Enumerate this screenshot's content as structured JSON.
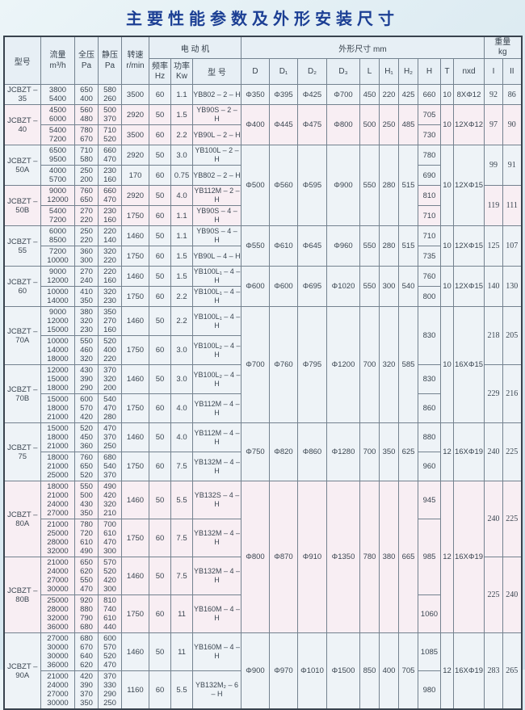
{
  "title": "主要性能参数及外形安装尺寸",
  "header": {
    "model": "型号",
    "flow": [
      "流量",
      "m³/h"
    ],
    "total_pressure": [
      "全压",
      "Pa"
    ],
    "static_pressure": [
      "静压",
      "Pa"
    ],
    "speed": [
      "转速",
      "r/min"
    ],
    "motor_group": "电 动 机",
    "freq": [
      "频率",
      "Hz"
    ],
    "power": [
      "功率",
      "Kw"
    ],
    "motor_model": "型 号",
    "dims_group": "外形尺寸 mm",
    "dims": [
      "D",
      "D₁",
      "D₂",
      "D₃",
      "L",
      "H₁",
      "H₂",
      "H",
      "T",
      "nxd"
    ],
    "weight_group": [
      "重量",
      "kg"
    ],
    "weight_cols": [
      "I",
      "II"
    ]
  },
  "colors": {
    "title_blue": "#1c3f94",
    "page_bg": "#d8e8f0",
    "tint_pink": "#f8eef3",
    "tint_blue": "#eef3f7",
    "grid": "#74828f"
  },
  "models": [
    {
      "label": [
        "JCBZT –",
        "35"
      ],
      "tint": "blue",
      "weights": [
        "92",
        "86"
      ],
      "rows": [
        {
          "flow": [
            "3800",
            "5400"
          ],
          "tp": [
            "650",
            "400"
          ],
          "sp": [
            "580",
            "260"
          ],
          "speed": "3500",
          "hz": "60",
          "kw": "1.1",
          "motor": "YB802 – 2 – H"
        }
      ]
    },
    {
      "label": [
        "JCBZT –",
        "40"
      ],
      "tint": "pink",
      "weights": [
        "97",
        "90"
      ],
      "rows": [
        {
          "flow": [
            "4500",
            "6000"
          ],
          "tp": [
            "560",
            "480"
          ],
          "sp": [
            "500",
            "370"
          ],
          "speed": "2920",
          "hz": "50",
          "kw": "1.5",
          "motor": "YB90S – 2 – H"
        },
        {
          "flow": [
            "5400",
            "7200"
          ],
          "tp": [
            "780",
            "670"
          ],
          "sp": [
            "710",
            "520"
          ],
          "speed": "3500",
          "hz": "60",
          "kw": "2.2",
          "motor": "YB90L – 2 – H"
        }
      ]
    },
    {
      "label": [
        "JCBZT –",
        "50A"
      ],
      "tint": "blue",
      "weights": [
        "99",
        "91"
      ],
      "rows": [
        {
          "flow": [
            "6500",
            "9500"
          ],
          "tp": [
            "710",
            "580"
          ],
          "sp": [
            "660",
            "470"
          ],
          "speed": "2920",
          "hz": "50",
          "kw": "3.0",
          "motor": "YB100L – 2 – H"
        },
        {
          "flow": [
            "4000",
            "5700"
          ],
          "tp": [
            "250",
            "200"
          ],
          "sp": [
            "230",
            "160"
          ],
          "speed": "170",
          "hz": "60",
          "kw": "0.75",
          "motor": "YB802 – 2 – H"
        }
      ]
    },
    {
      "label": [
        "JCBZT –",
        "50B"
      ],
      "tint": "pink",
      "weights": [
        "119",
        "111"
      ],
      "rows": [
        {
          "flow": [
            "9000",
            "12000"
          ],
          "tp": [
            "760",
            "650"
          ],
          "sp": [
            "660",
            "470"
          ],
          "speed": "2920",
          "hz": "50",
          "kw": "4.0",
          "motor": "YB112M – 2 – H"
        },
        {
          "flow": [
            "5400",
            "7200"
          ],
          "tp": [
            "270",
            "220"
          ],
          "sp": [
            "230",
            "160"
          ],
          "speed": "1750",
          "hz": "60",
          "kw": "1.1",
          "motor": "YB90S – 4 – H"
        }
      ]
    },
    {
      "label": [
        "JCBZT –",
        "55"
      ],
      "tint": "blue",
      "weights": [
        "125",
        "107"
      ],
      "rows": [
        {
          "flow": [
            "6000",
            "8500"
          ],
          "tp": [
            "250",
            "220"
          ],
          "sp": [
            "220",
            "140"
          ],
          "speed": "1460",
          "hz": "50",
          "kw": "1.1",
          "motor": "YB90S – 4 – H"
        },
        {
          "flow": [
            "7200",
            "10000"
          ],
          "tp": [
            "360",
            "300"
          ],
          "sp": [
            "320",
            "220"
          ],
          "speed": "1750",
          "hz": "60",
          "kw": "1.5",
          "motor": "YB90L – 4 – H"
        }
      ]
    },
    {
      "label": [
        "JCBZT –",
        "60"
      ],
      "tint": "blue",
      "weights": [
        "140",
        "130"
      ],
      "rows": [
        {
          "flow": [
            "9000",
            "12000"
          ],
          "tp": [
            "270",
            "240"
          ],
          "sp": [
            "220",
            "160"
          ],
          "speed": "1460",
          "hz": "50",
          "kw": "1.5",
          "motor": "YB100L₁ – 4 – H"
        },
        {
          "flow": [
            "10000",
            "14000"
          ],
          "tp": [
            "410",
            "350"
          ],
          "sp": [
            "320",
            "230"
          ],
          "speed": "1750",
          "hz": "60",
          "kw": "2.2",
          "motor": "YB100L₁ – 4 – H"
        }
      ]
    },
    {
      "label": [
        "JCBZT –",
        "70A"
      ],
      "tint": "blue",
      "weights": [
        "218",
        "205"
      ],
      "rows": [
        {
          "flow": [
            "9000",
            "12000",
            "15000"
          ],
          "tp": [
            "380",
            "320",
            "230"
          ],
          "sp": [
            "350",
            "270",
            "160"
          ],
          "speed": "1460",
          "hz": "50",
          "kw": "2.2",
          "motor": "YB100L₁ – 4 – H"
        },
        {
          "flow": [
            "10000",
            "14000",
            "18000"
          ],
          "tp": [
            "550",
            "460",
            "320"
          ],
          "sp": [
            "520",
            "400",
            "220"
          ],
          "speed": "1750",
          "hz": "60",
          "kw": "3.0",
          "motor": "YB100L₂ – 4 – H"
        }
      ]
    },
    {
      "label": [
        "JCBZT –",
        "70B"
      ],
      "tint": "blue",
      "weights": [
        "229",
        "216"
      ],
      "rows": [
        {
          "flow": [
            "12000",
            "15000",
            "18000"
          ],
          "tp": [
            "430",
            "390",
            "290"
          ],
          "sp": [
            "370",
            "320",
            "200"
          ],
          "speed": "1460",
          "hz": "50",
          "kw": "3.0",
          "motor": "YB100L₂ – 4 – H"
        },
        {
          "flow": [
            "15000",
            "18000",
            "21000"
          ],
          "tp": [
            "600",
            "570",
            "420"
          ],
          "sp": [
            "540",
            "470",
            "280"
          ],
          "speed": "1750",
          "hz": "60",
          "kw": "4.0",
          "motor": "YB112M – 4 – H"
        }
      ]
    },
    {
      "label": [
        "JCBZT –",
        "75"
      ],
      "tint": "blue",
      "weights": [
        "240",
        "225"
      ],
      "rows": [
        {
          "flow": [
            "15000",
            "18000",
            "21000"
          ],
          "tp": [
            "520",
            "450",
            "360"
          ],
          "sp": [
            "470",
            "370",
            "250"
          ],
          "speed": "1460",
          "hz": "50",
          "kw": "4.0",
          "motor": "YB112M – 4 – H"
        },
        {
          "flow": [
            "18000",
            "21000",
            "25000"
          ],
          "tp": [
            "760",
            "650",
            "520"
          ],
          "sp": [
            "680",
            "540",
            "370"
          ],
          "speed": "1750",
          "hz": "60",
          "kw": "7.5",
          "motor": "YB132M – 4 – H"
        }
      ]
    },
    {
      "label": [
        "JCBZT –",
        "80A"
      ],
      "tint": "pink",
      "weights": [
        "240",
        "225"
      ],
      "rows": [
        {
          "flow": [
            "18000",
            "21000",
            "24000",
            "27000"
          ],
          "tp": [
            "550",
            "500",
            "430",
            "350"
          ],
          "sp": [
            "490",
            "420",
            "320",
            "210"
          ],
          "speed": "1460",
          "hz": "50",
          "kw": "5.5",
          "motor": "YB132S – 4 – H"
        },
        {
          "flow": [
            "21000",
            "25000",
            "28000",
            "32000"
          ],
          "tp": [
            "780",
            "720",
            "610",
            "490"
          ],
          "sp": [
            "700",
            "610",
            "470",
            "300"
          ],
          "speed": "1750",
          "hz": "60",
          "kw": "7.5",
          "motor": "YB132M – 4 – H"
        }
      ]
    },
    {
      "label": [
        "JCBZT –",
        "80B"
      ],
      "tint": "pink",
      "weights": [
        "225",
        "240"
      ],
      "rows": [
        {
          "flow": [
            "21000",
            "24000",
            "27000",
            "30000"
          ],
          "tp": [
            "650",
            "620",
            "550",
            "470"
          ],
          "sp": [
            "570",
            "520",
            "420",
            "300"
          ],
          "speed": "1460",
          "hz": "50",
          "kw": "7.5",
          "motor": "YB132M – 4 – H"
        },
        {
          "flow": [
            "25000",
            "28000",
            "32000",
            "36000"
          ],
          "tp": [
            "920",
            "880",
            "790",
            "680"
          ],
          "sp": [
            "810",
            "740",
            "610",
            "440"
          ],
          "speed": "1750",
          "hz": "60",
          "kw": "11",
          "motor": "YB160M – 4 – H"
        }
      ]
    },
    {
      "label": [
        "JCBZT –",
        "90A"
      ],
      "tint": "blue",
      "weights": [
        "283",
        "265"
      ],
      "rows": [
        {
          "flow": [
            "27000",
            "30000",
            "30000",
            "36000"
          ],
          "tp": [
            "680",
            "670",
            "640",
            "620"
          ],
          "sp": [
            "600",
            "570",
            "520",
            "470"
          ],
          "speed": "1460",
          "hz": "50",
          "kw": "11",
          "motor": "YB160M – 4 – H"
        },
        {
          "flow": [
            "21000",
            "24000",
            "27000",
            "30000"
          ],
          "tp": [
            "420",
            "390",
            "370",
            "350"
          ],
          "sp": [
            "370",
            "330",
            "290",
            "250"
          ],
          "speed": "1160",
          "hz": "60",
          "kw": "5.5",
          "motor": "YB132M₂ – 6 – H"
        }
      ]
    }
  ],
  "dim_groups": [
    {
      "row": 0,
      "span": 1,
      "cells": [
        "Φ350",
        "Φ395",
        "Φ425",
        "Φ700",
        "450",
        "220",
        "425"
      ],
      "t": "10",
      "nxd": "8XΦ12"
    },
    {
      "row": 1,
      "span": 2,
      "cells": [
        "Φ400",
        "Φ445",
        "Φ475",
        "Φ800",
        "500",
        "250",
        "485"
      ],
      "t": "10",
      "nxd": "12XΦ12"
    },
    {
      "row": 3,
      "span": 4,
      "cells": [
        "Φ500",
        "Φ560",
        "Φ595",
        "Φ900",
        "550",
        "280",
        "515"
      ],
      "t": "10",
      "nxd": "12XΦ15"
    },
    {
      "row": 7,
      "span": 2,
      "cells": [
        "Φ550",
        "Φ610",
        "Φ645",
        "Φ960",
        "550",
        "280",
        "515"
      ],
      "t": "10",
      "nxd": "12XΦ15"
    },
    {
      "row": 9,
      "span": 2,
      "cells": [
        "Φ600",
        "Φ600",
        "Φ695",
        "Φ1020",
        "550",
        "300",
        "540"
      ],
      "t": "10",
      "nxd": "12XΦ15"
    },
    {
      "row": 11,
      "span": 4,
      "cells": [
        "Φ700",
        "Φ760",
        "Φ795",
        "Φ1200",
        "700",
        "320",
        "585"
      ],
      "t": "10",
      "nxd": "16XΦ15"
    },
    {
      "row": 15,
      "span": 2,
      "cells": [
        "Φ750",
        "Φ820",
        "Φ860",
        "Φ1280",
        "700",
        "350",
        "625"
      ],
      "t": "12",
      "nxd": "16XΦ19"
    },
    {
      "row": 17,
      "span": 4,
      "cells": [
        "Φ800",
        "Φ870",
        "Φ910",
        "Φ1350",
        "780",
        "380",
        "665"
      ],
      "t": "12",
      "nxd": "16XΦ19"
    },
    {
      "row": 21,
      "span": 2,
      "cells": [
        "Φ900",
        "Φ970",
        "Φ1010",
        "Φ1500",
        "850",
        "400",
        "705"
      ],
      "t": "12",
      "nxd": "16XΦ19"
    }
  ],
  "h_cells": [
    {
      "row": 0,
      "span": 1,
      "v": "660"
    },
    {
      "row": 1,
      "span": 1,
      "v": "705"
    },
    {
      "row": 2,
      "span": 1,
      "v": "730"
    },
    {
      "row": 3,
      "span": 1,
      "v": "780"
    },
    {
      "row": 4,
      "span": 1,
      "v": "690"
    },
    {
      "row": 5,
      "span": 1,
      "v": "810"
    },
    {
      "row": 6,
      "span": 1,
      "v": "710"
    },
    {
      "row": 7,
      "span": 1,
      "v": "710"
    },
    {
      "row": 8,
      "span": 1,
      "v": "735"
    },
    {
      "row": 9,
      "span": 1,
      "v": "760"
    },
    {
      "row": 10,
      "span": 1,
      "v": "800"
    },
    {
      "row": 11,
      "span": 2,
      "v": "830"
    },
    {
      "row": 13,
      "span": 1,
      "v": "830"
    },
    {
      "row": 14,
      "span": 1,
      "v": "860"
    },
    {
      "row": 15,
      "span": 1,
      "v": "880"
    },
    {
      "row": 16,
      "span": 1,
      "v": "960"
    },
    {
      "row": 17,
      "span": 1,
      "v": "945"
    },
    {
      "row": 18,
      "span": 2,
      "v": "985"
    },
    {
      "row": 20,
      "span": 1,
      "v": "1060"
    },
    {
      "row": 21,
      "span": 1,
      "v": "1085"
    },
    {
      "row": 22,
      "span": 1,
      "v": "980"
    }
  ]
}
